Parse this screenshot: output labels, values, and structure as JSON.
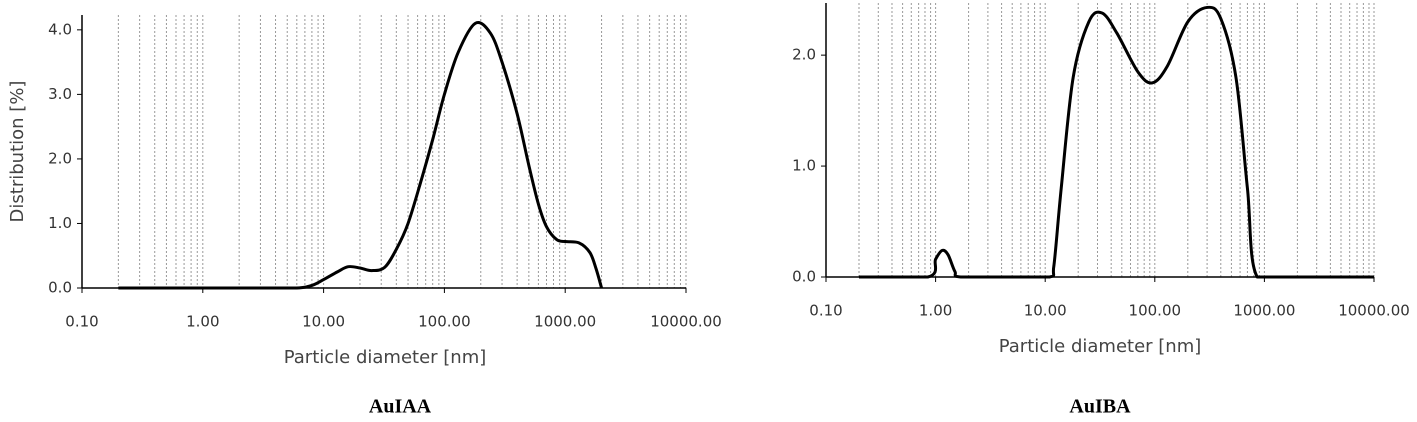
{
  "chart_data": [
    {
      "type": "line",
      "caption": "AuIAA",
      "xlabel": "Particle diameter [nm]",
      "ylabel": "Distribution [%]",
      "xscale": "log",
      "xlim": [
        0.1,
        10000
      ],
      "ylim": [
        0,
        4.23
      ],
      "xticks": [
        {
          "value": 0.1,
          "label": "0.10"
        },
        {
          "value": 1,
          "label": "1.00"
        },
        {
          "value": 10,
          "label": "10.00"
        },
        {
          "value": 100,
          "label": "100.00"
        },
        {
          "value": 1000,
          "label": "1000.00"
        },
        {
          "value": 10000,
          "label": "10000.00"
        }
      ],
      "yticks": [
        {
          "value": 0,
          "label": "0.0"
        },
        {
          "value": 1,
          "label": "1.0"
        },
        {
          "value": 2,
          "label": "2.0"
        },
        {
          "value": 3,
          "label": "3.0"
        },
        {
          "value": 4,
          "label": "4.0"
        }
      ],
      "xgrid": [
        0.2,
        0.3,
        0.4,
        0.5,
        0.6,
        0.7,
        0.8,
        0.9,
        1,
        2,
        3,
        4,
        5,
        6,
        7,
        8,
        9,
        10,
        20,
        30,
        40,
        50,
        60,
        70,
        80,
        90,
        100,
        200,
        300,
        400,
        500,
        600,
        700,
        800,
        900,
        1000,
        2000,
        3000,
        4000,
        5000,
        6000,
        7000,
        8000,
        9000,
        10000
      ],
      "series": [
        {
          "color": "#000000",
          "x": [
            0.2,
            1,
            3,
            6,
            8,
            10,
            13,
            16,
            20,
            25,
            32,
            40,
            50,
            65,
            80,
            100,
            130,
            180,
            240,
            300,
            400,
            500,
            600,
            700,
            850,
            1000,
            1300,
            1600,
            1800,
            2000
          ],
          "values": [
            0,
            0,
            0,
            0,
            0.04,
            0.13,
            0.25,
            0.33,
            0.31,
            0.27,
            0.32,
            0.6,
            1.0,
            1.7,
            2.3,
            3.0,
            3.65,
            4.1,
            3.95,
            3.5,
            2.7,
            1.9,
            1.3,
            0.95,
            0.75,
            0.72,
            0.7,
            0.55,
            0.3,
            0
          ]
        }
      ]
    },
    {
      "type": "line",
      "caption": "AuIBA",
      "xlabel": "Particle diameter [nm]",
      "xscale": "log",
      "xlim": [
        0.1,
        10000
      ],
      "ylim": [
        0,
        2.47
      ],
      "xticks": [
        {
          "value": 0.1,
          "label": "0.10"
        },
        {
          "value": 1,
          "label": "1.00"
        },
        {
          "value": 10,
          "label": "10.00"
        },
        {
          "value": 100,
          "label": "100.00"
        },
        {
          "value": 1000,
          "label": "1000.00"
        },
        {
          "value": 10000,
          "label": "10000.00"
        }
      ],
      "yticks": [
        {
          "value": 0,
          "label": "0.0"
        },
        {
          "value": 1,
          "label": "1.0"
        },
        {
          "value": 2,
          "label": "2.0"
        }
      ],
      "xgrid": [
        0.2,
        0.3,
        0.4,
        0.5,
        0.6,
        0.7,
        0.8,
        0.9,
        1,
        2,
        3,
        4,
        5,
        6,
        7,
        8,
        9,
        10,
        20,
        30,
        40,
        50,
        60,
        70,
        80,
        90,
        100,
        200,
        300,
        400,
        500,
        600,
        700,
        800,
        900,
        1000,
        2000,
        3000,
        4000,
        5000,
        6000,
        7000,
        8000,
        9000,
        10000
      ],
      "series": [
        {
          "color": "#000000",
          "x": [
            0.2,
            0.85,
            1.0,
            1.15,
            1.3,
            1.5,
            1.7,
            5,
            11,
            12,
            14,
            18,
            25,
            33,
            45,
            70,
            95,
            130,
            200,
            300,
            400,
            550,
            700,
            860,
            2000,
            10000
          ],
          "values": [
            0,
            0,
            0.16,
            0.24,
            0.2,
            0.05,
            0,
            0,
            0,
            0.1,
            0.8,
            1.8,
            2.3,
            2.38,
            2.2,
            1.85,
            1.75,
            1.9,
            2.3,
            2.43,
            2.33,
            1.8,
            0.8,
            0,
            0,
            0
          ]
        }
      ]
    }
  ]
}
